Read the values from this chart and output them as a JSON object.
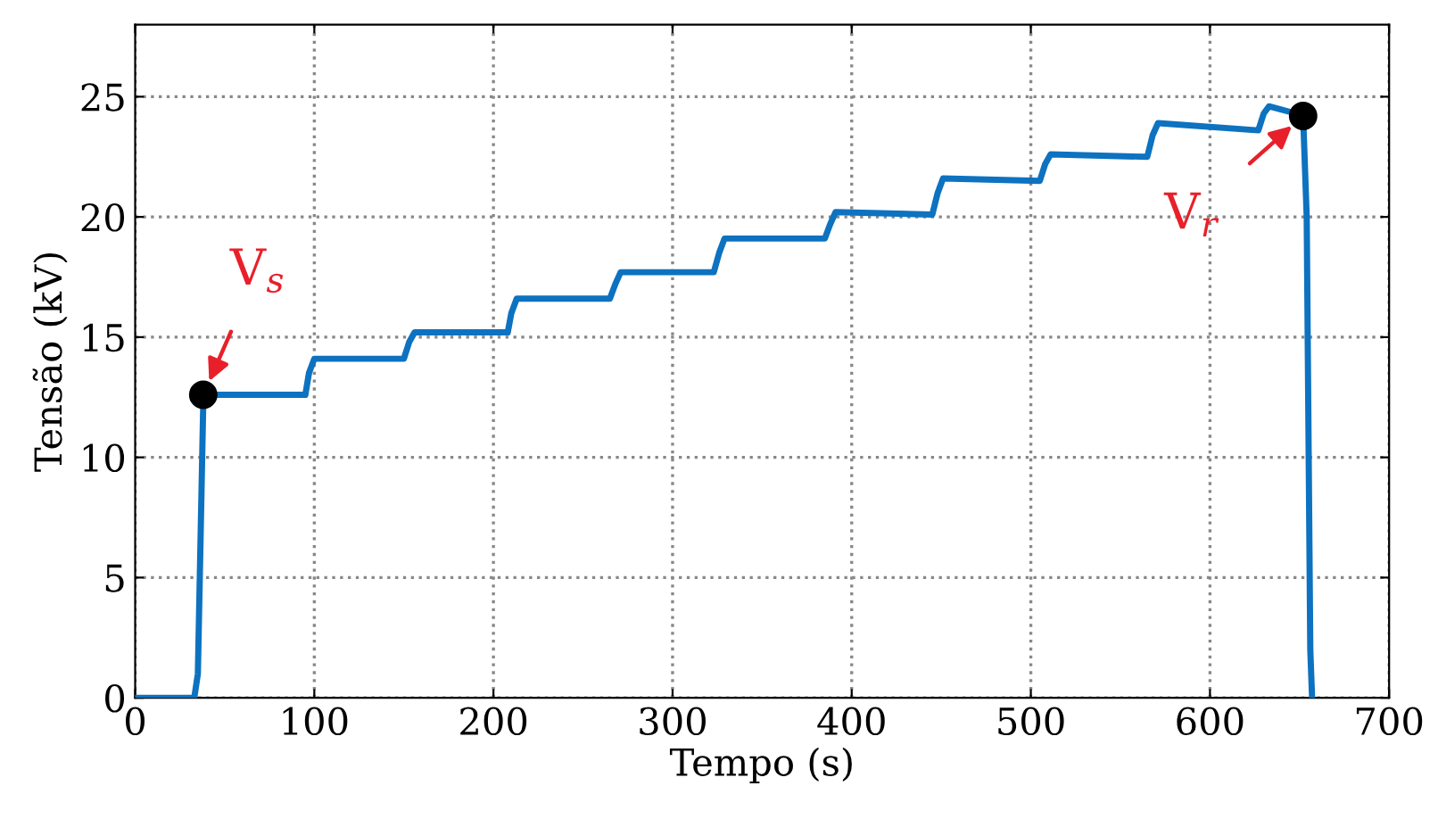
{
  "chart_data": {
    "type": "line",
    "xlabel": "Tempo (s)",
    "ylabel": "Tensão (kV)",
    "xlim": [
      0,
      700
    ],
    "ylim": [
      0,
      28
    ],
    "xticks": [
      0,
      100,
      200,
      300,
      400,
      500,
      600,
      700
    ],
    "yticks": [
      0,
      5,
      10,
      15,
      20,
      25
    ],
    "grid": true,
    "series": [
      {
        "color": "#0d72c0",
        "line_style": "solid",
        "marker": "none",
        "x": [
          0,
          33,
          35,
          38,
          40,
          95,
          97,
          100,
          150,
          153,
          156,
          208,
          210,
          213,
          265,
          268,
          271,
          323,
          326,
          329,
          385,
          388,
          391,
          445,
          448,
          451,
          505,
          508,
          511,
          565,
          568,
          571,
          627,
          630,
          633,
          648,
          652,
          654,
          656,
          657
        ],
        "values": [
          0,
          0,
          1,
          12.2,
          12.6,
          12.6,
          13.5,
          14.1,
          14.1,
          14.8,
          15.2,
          15.2,
          16.0,
          16.6,
          16.6,
          17.2,
          17.7,
          17.7,
          18.5,
          19.1,
          19.1,
          19.7,
          20.2,
          20.1,
          21.0,
          21.6,
          21.5,
          22.2,
          22.6,
          22.5,
          23.4,
          23.9,
          23.6,
          24.3,
          24.6,
          24.3,
          24.2,
          20,
          2,
          0
        ]
      },
      {
        "type": "scatter",
        "color": "#000000",
        "marker": "circle",
        "x": [
          38,
          652
        ],
        "values": [
          12.6,
          24.2
        ]
      }
    ],
    "annotations": [
      {
        "text": "V$_{s}$",
        "x": 38,
        "y": 12.6
      },
      {
        "text": "V$_{r}$",
        "x": 652,
        "y": 24.2
      }
    ]
  }
}
